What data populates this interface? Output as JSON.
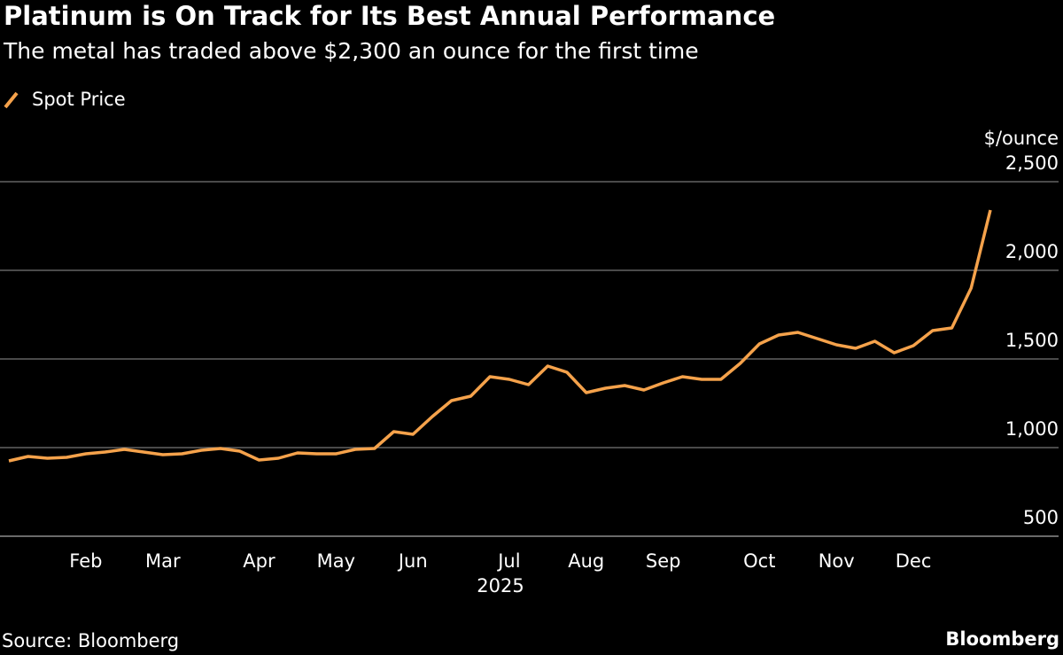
{
  "chart_data": {
    "type": "line",
    "title": "Platinum is On Track for Its Best Annual Performance",
    "subtitle": "The metal has traded above $2,300 an ounce for the first time",
    "y_unit": "$/ounce",
    "x_label": "2025",
    "source": "Source: Bloomberg",
    "brand": "Bloomberg",
    "legend": "top-left",
    "grid": true,
    "categories": [
      null,
      null,
      null,
      null,
      "Feb",
      null,
      null,
      null,
      "Mar",
      null,
      null,
      null,
      null,
      "Apr",
      null,
      null,
      null,
      "May",
      null,
      null,
      null,
      "Jun",
      null,
      null,
      null,
      null,
      "Jul",
      null,
      null,
      null,
      "Aug",
      null,
      null,
      null,
      "Sep",
      null,
      null,
      null,
      null,
      "Oct",
      null,
      null,
      null,
      "Nov",
      null,
      null,
      null,
      "Dec",
      null,
      null,
      null,
      null
    ],
    "series": [
      {
        "name": "Spot Price",
        "color": "#f5a24b",
        "values": [
          925,
          950,
          940,
          945,
          965,
          975,
          990,
          975,
          960,
          965,
          985,
          995,
          980,
          930,
          940,
          970,
          965,
          965,
          990,
          995,
          1090,
          1075,
          1175,
          1265,
          1290,
          1400,
          1385,
          1355,
          1460,
          1425,
          1310,
          1335,
          1350,
          1325,
          1365,
          1400,
          1385,
          1385,
          1475,
          1585,
          1635,
          1650,
          1615,
          1580,
          1560,
          1600,
          1535,
          1575,
          1660,
          1675,
          1900,
          2340
        ]
      }
    ],
    "ylim": [
      500,
      2500
    ],
    "yticks": [
      500,
      {
        "value": 1000,
        "label": "1,000"
      },
      {
        "value": 1500,
        "label": "1,500"
      },
      {
        "value": 2000,
        "label": "2,000"
      },
      {
        "value": 2500,
        "label": "2,500"
      }
    ]
  }
}
